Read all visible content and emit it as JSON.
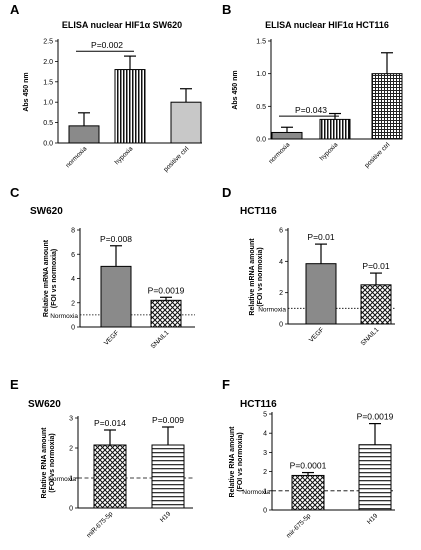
{
  "figure": {
    "panels": [
      {
        "letter": "A",
        "title": "ELISA nuclear HIF1α SW620",
        "name": ""
      },
      {
        "letter": "B",
        "title": "ELISA nuclear HIF1α HCT116",
        "name": ""
      },
      {
        "letter": "C",
        "title": "",
        "name": "SW620"
      },
      {
        "letter": "D",
        "title": "",
        "name": "HCT116"
      },
      {
        "letter": "E",
        "title": "",
        "name": "SW620"
      },
      {
        "letter": "F",
        "title": "",
        "name": "HCT116"
      }
    ]
  },
  "chart_data": [
    {
      "type": "bar",
      "panel": "A",
      "title": "ELISA nuclear HIF1α SW620",
      "ylabel": "Abs 450 nm",
      "xlabel": "",
      "ylim": [
        0,
        2.5
      ],
      "yticks": [
        "0.0",
        "0.5",
        "1.0",
        "1.5",
        "2.0",
        "2.5"
      ],
      "categories": [
        "normoxia",
        "hypoxia",
        "positive ctrl"
      ],
      "values": [
        0.42,
        1.8,
        1.0
      ],
      "errors": [
        0.32,
        0.33,
        0.33
      ],
      "fills": [
        "solid-gray",
        "vertical-stripes",
        "light-gray"
      ],
      "annotations": [
        {
          "text": "P=0.002",
          "from": "normoxia",
          "to": "hypoxia",
          "y": 2.25
        }
      ]
    },
    {
      "type": "bar",
      "panel": "B",
      "title": "ELISA nuclear HIF1α HCT116",
      "ylabel": "Abs 450 nm",
      "xlabel": "",
      "ylim": [
        0,
        1.5
      ],
      "yticks": [
        "0.0",
        "0.5",
        "1.0",
        "1.5"
      ],
      "categories": [
        "normoxia",
        "hypoxia",
        "positive ctrl"
      ],
      "values": [
        0.1,
        0.3,
        1.0
      ],
      "errors": [
        0.08,
        0.09,
        0.32
      ],
      "fills": [
        "solid-gray",
        "vertical-stripes",
        "grid"
      ],
      "annotations": [
        {
          "text": "P=0.043",
          "from": "normoxia",
          "to": "hypoxia",
          "y": 0.35
        }
      ]
    },
    {
      "type": "bar",
      "panel": "C",
      "title": "SW620",
      "ylabel": "Relative mRNA amount\n(FOI vs normoxia)",
      "xlabel": "",
      "ylim": [
        0,
        8
      ],
      "yticks": [
        "0",
        "2",
        "4",
        "6",
        "8"
      ],
      "reference": {
        "label": "Normoxia",
        "y": 1,
        "style": "dotted"
      },
      "categories": [
        "VEGF",
        "SNAIL1"
      ],
      "values": [
        5.0,
        2.2
      ],
      "errors": [
        1.7,
        0.25
      ],
      "fills": [
        "solid-gray",
        "crosshatch"
      ],
      "annotations": [
        {
          "text": "P=0.008",
          "bar": 0
        },
        {
          "text": "P=0.0019",
          "bar": 1
        }
      ]
    },
    {
      "type": "bar",
      "panel": "D",
      "title": "HCT116",
      "ylabel": "Relative mRNA amount\n(FOI vs normoxia)",
      "xlabel": "",
      "ylim": [
        0,
        6
      ],
      "yticks": [
        "0",
        "2",
        "4",
        "6"
      ],
      "reference": {
        "label": "Normoxia",
        "y": 1,
        "style": "dotted"
      },
      "categories": [
        "VEGF",
        "SNAIL1"
      ],
      "values": [
        3.85,
        2.5
      ],
      "errors": [
        1.25,
        0.75
      ],
      "fills": [
        "solid-gray",
        "crosshatch"
      ],
      "annotations": [
        {
          "text": "P=0.01",
          "bar": 0
        },
        {
          "text": "P=0.01",
          "bar": 1
        }
      ]
    },
    {
      "type": "bar",
      "panel": "E",
      "title": "SW620",
      "ylabel": "Relative RNA amount\n(FOI vs normoxia)",
      "xlabel": "",
      "ylim": [
        0,
        3
      ],
      "yticks": [
        "0",
        "1",
        "2",
        "3"
      ],
      "reference": {
        "label": "Normoxia",
        "y": 1,
        "style": "dashed"
      },
      "categories": [
        "miR-675-5p",
        "H19"
      ],
      "values": [
        2.1,
        2.1
      ],
      "errors": [
        0.5,
        0.6
      ],
      "fills": [
        "crosshatch",
        "horizontal-stripes"
      ],
      "annotations": [
        {
          "text": "P=0.014",
          "bar": 0
        },
        {
          "text": "P=0.009",
          "bar": 1
        }
      ]
    },
    {
      "type": "bar",
      "panel": "F",
      "title": "HCT116",
      "ylabel": "Relative RNA amount\n(FOI vs normoxia)",
      "xlabel": "",
      "ylim": [
        0,
        5
      ],
      "yticks": [
        "0",
        "1",
        "2",
        "3",
        "4",
        "5"
      ],
      "reference": {
        "label": "Normoxia",
        "y": 1,
        "style": "dashed"
      },
      "categories": [
        "mir-675-5p",
        "H19"
      ],
      "values": [
        1.8,
        3.4
      ],
      "errors": [
        0.15,
        1.1
      ],
      "fills": [
        "crosshatch",
        "horizontal-stripes"
      ],
      "annotations": [
        {
          "text": "P=0.0001",
          "bar": 0
        },
        {
          "text": "P=0.0019",
          "bar": 1
        }
      ]
    }
  ]
}
